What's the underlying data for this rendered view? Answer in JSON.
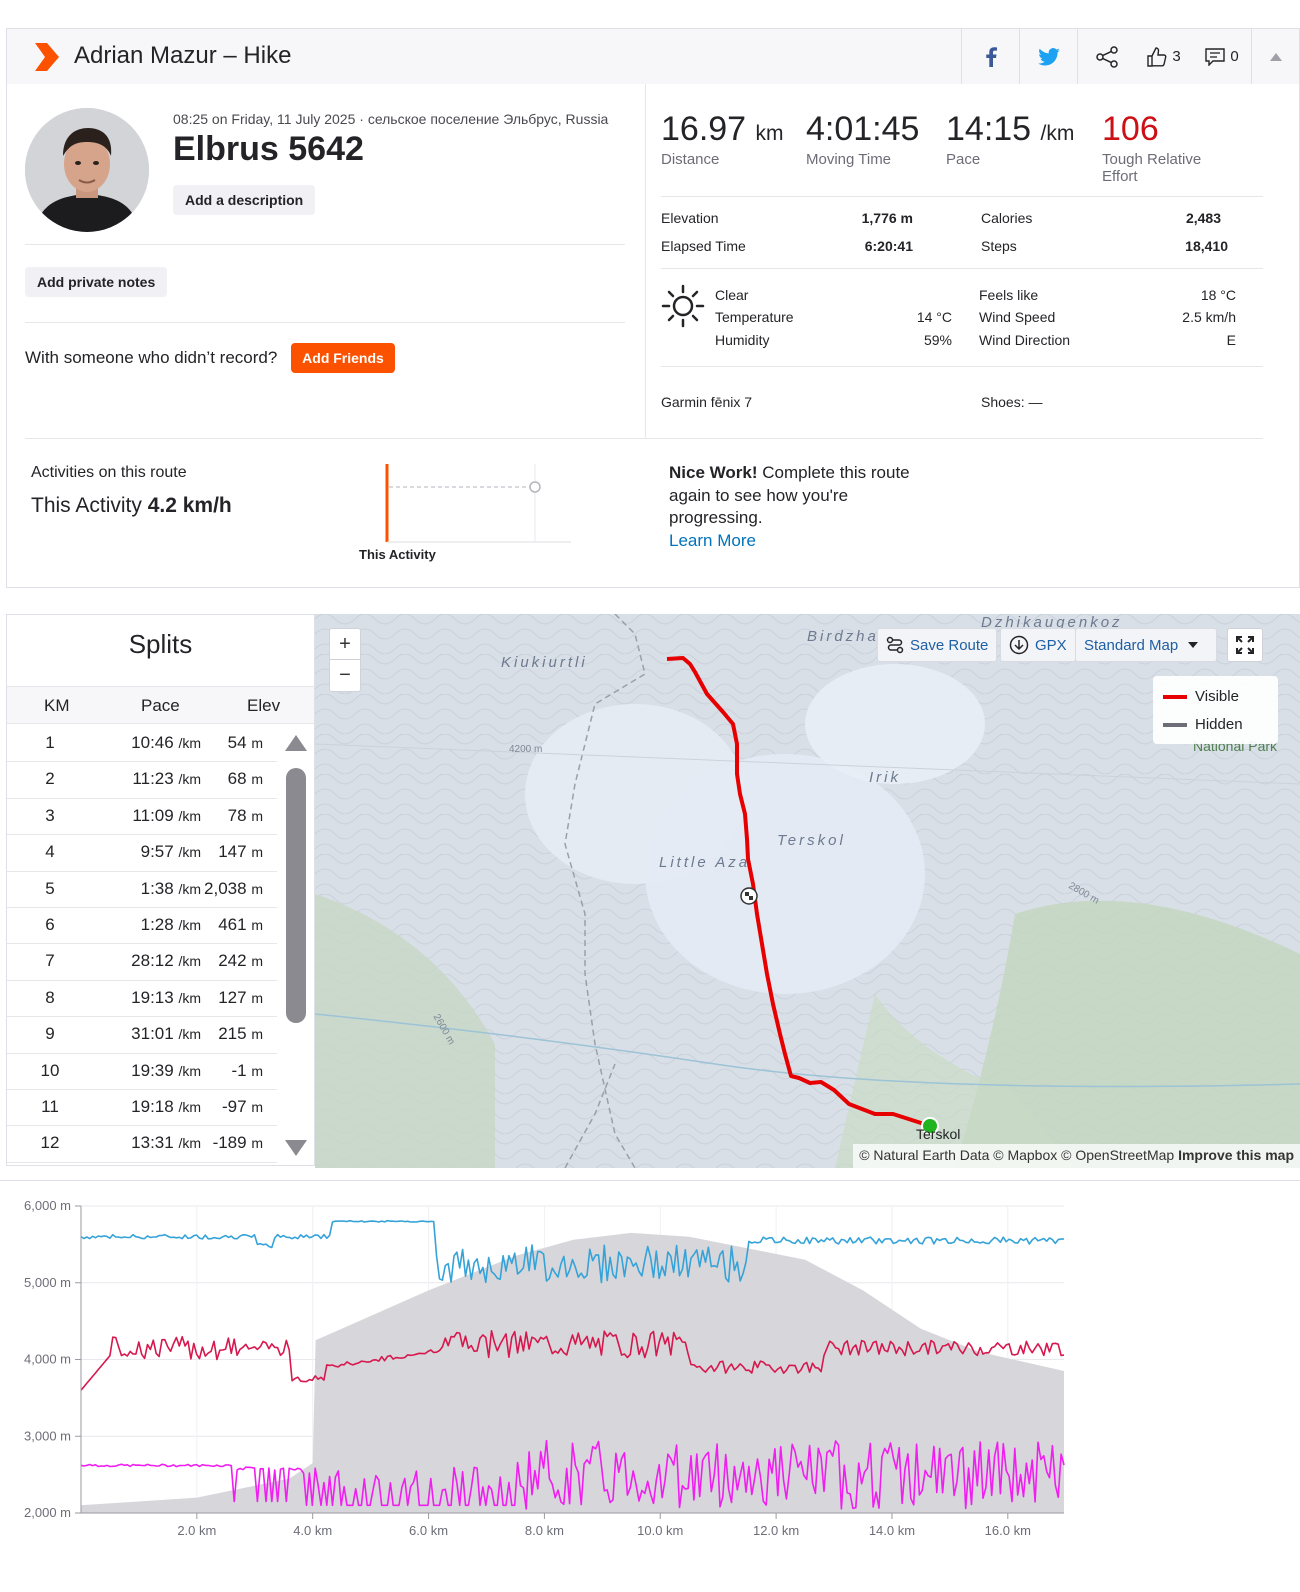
{
  "header": {
    "title": "Adrian Mazur – Hike",
    "kudos_count": "3",
    "comment_count": "0"
  },
  "activity": {
    "meta": "08:25 on Friday, 11 July 2025 · сельское поселение Эльбрус, Russia",
    "name": "Elbrus 5642",
    "add_description": "Add a description",
    "add_private_notes": "Add private notes",
    "with_someone": "With someone who didn’t record?",
    "add_friends": "Add Friends"
  },
  "stats": {
    "distance": {
      "value": "16.97",
      "unit": "km",
      "label": "Distance"
    },
    "moving_time": {
      "value": "4:01:45",
      "label": "Moving Time"
    },
    "pace": {
      "value": "14:15",
      "unit": "/km",
      "label": "Pace"
    },
    "effort": {
      "value": "106",
      "label1": "Tough Relative",
      "label2": "Effort"
    }
  },
  "details": {
    "elevation_label": "Elevation",
    "elevation": "1,776 m",
    "elapsed_label": "Elapsed Time",
    "elapsed": "6:20:41",
    "calories_label": "Calories",
    "calories": "2,483",
    "steps_label": "Steps",
    "steps": "18,410"
  },
  "weather": {
    "condition": "Clear",
    "temperature_label": "Temperature",
    "temperature": "14 °C",
    "humidity_label": "Humidity",
    "humidity": "59%",
    "feels_like_label": "Feels like",
    "feels_like": "18 °C",
    "wind_speed_label": "Wind Speed",
    "wind_speed": "2.5 km/h",
    "wind_dir_label": "Wind Direction",
    "wind_dir": "E"
  },
  "gear": {
    "device": "Garmin fēnix 7",
    "shoes": "Shoes: —"
  },
  "route": {
    "title": "Activities on this route",
    "this_activity": "This Activity",
    "speed": "4.2 km/h",
    "bar_label": "This Activity",
    "nice_bold": "Nice Work!",
    "nice_text": " Complete this route again to see how you're progressing.",
    "learn_more": "Learn More"
  },
  "splits": {
    "title": "Splits",
    "headers": [
      "KM",
      "Pace",
      "Elev"
    ],
    "rows": [
      {
        "km": "1",
        "pace": "10:46",
        "elev": "54"
      },
      {
        "km": "2",
        "pace": "11:23",
        "elev": "68"
      },
      {
        "km": "3",
        "pace": "11:09",
        "elev": "78"
      },
      {
        "km": "4",
        "pace": "9:57",
        "elev": "147"
      },
      {
        "km": "5",
        "pace": "1:38",
        "elev": "2,038"
      },
      {
        "km": "6",
        "pace": "1:28",
        "elev": "461"
      },
      {
        "km": "7",
        "pace": "28:12",
        "elev": "242"
      },
      {
        "km": "8",
        "pace": "19:13",
        "elev": "127"
      },
      {
        "km": "9",
        "pace": "31:01",
        "elev": "215"
      },
      {
        "km": "10",
        "pace": "19:39",
        "elev": "-1"
      },
      {
        "km": "11",
        "pace": "19:18",
        "elev": "-97"
      },
      {
        "km": "12",
        "pace": "13:31",
        "elev": "-189"
      }
    ],
    "pace_unit": "/km",
    "elev_unit": "m"
  },
  "map": {
    "save_route": "Save Route",
    "gpx": "GPX",
    "map_type": "Standard Map",
    "legend_visible": "Visible",
    "legend_hidden": "Hidden",
    "attribution": "© Natural Earth Data © Mapbox © OpenStreetMap",
    "improve": "Improve this map",
    "labels": [
      "Kiukiurtli",
      "Birdzha",
      "Dzhikaugenkoz",
      "Irik",
      "Terskol",
      "Little Aza",
      "Terskol",
      "National Park",
      "4200 m",
      "2600 m",
      "2800 m"
    ],
    "zoom_in": "+",
    "zoom_out": "−"
  },
  "chart_data": {
    "type": "line",
    "y_ticks": [
      "6,000 m",
      "5,000 m",
      "4,000 m",
      "3,000 m",
      "2,000 m"
    ],
    "x_ticks": [
      "2.0 km",
      "4.0 km",
      "6.0 km",
      "8.0 km",
      "10.0 km",
      "12.0 km",
      "14.0 km",
      "16.0 km"
    ],
    "xlim": [
      0,
      16.97
    ],
    "ylim": [
      2000,
      6000
    ],
    "elevation_profile": {
      "x": [
        0,
        2,
        3.6,
        4.0,
        4.05,
        6,
        7.5,
        8.5,
        9.5,
        10.5,
        11.5,
        12.5,
        13.5,
        14.5,
        15.5,
        16.97
      ],
      "y": [
        2100,
        2200,
        2450,
        2650,
        4250,
        4900,
        5350,
        5560,
        5650,
        5600,
        5450,
        5300,
        4900,
        4400,
        4100,
        3850
      ]
    },
    "series": [
      {
        "color": "#35a3d8"
      },
      {
        "color": "#d6184e"
      },
      {
        "color": "#f01ef0"
      }
    ]
  },
  "colors": {
    "brand": "#fc5200",
    "effort": "#cc1016",
    "link": "#0073bb",
    "route": "#e60000"
  }
}
